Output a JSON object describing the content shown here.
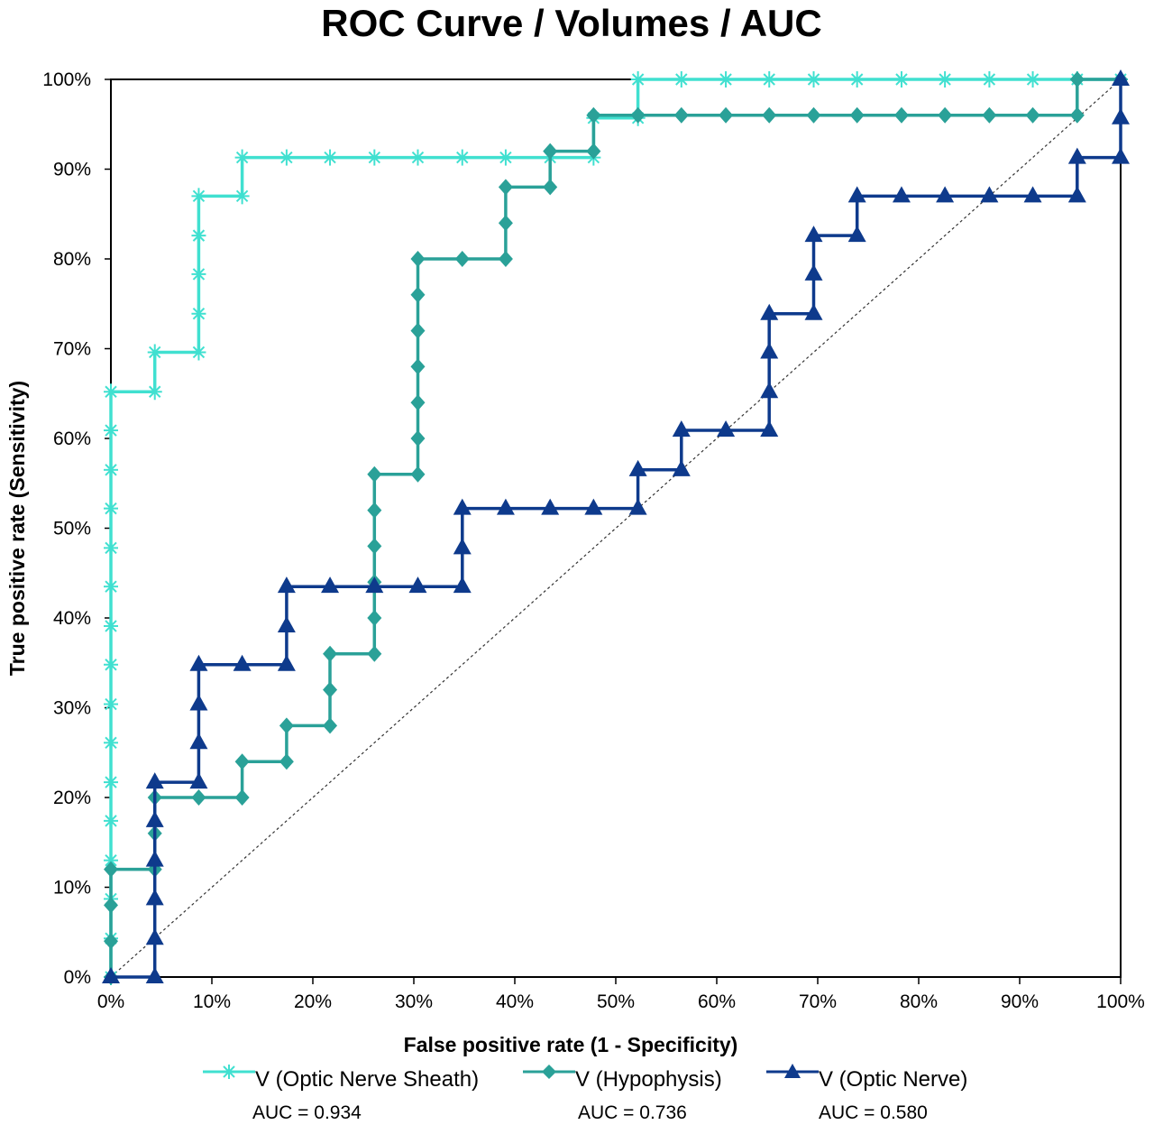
{
  "chart_data": {
    "type": "line",
    "title": "ROC Curve / Volumes / AUC",
    "xlabel": "False positive rate (1 - Specificity)",
    "ylabel": "True positive rate (Sensitivity)",
    "xlim": [
      0,
      1
    ],
    "ylim": [
      0,
      1
    ],
    "x_ticks": [
      "0%",
      "10%",
      "20%",
      "30%",
      "40%",
      "50%",
      "60%",
      "70%",
      "80%",
      "90%",
      "100%"
    ],
    "y_ticks": [
      "0%",
      "10%",
      "20%",
      "30%",
      "40%",
      "50%",
      "60%",
      "70%",
      "80%",
      "90%",
      "100%"
    ],
    "grid": false,
    "legend_position": "bottom",
    "reference_line": "diagonal dotted",
    "series": [
      {
        "name": "V (Optic Nerve Sheath)",
        "auc_label": "AUC = 0.934",
        "color": "#40E0D0",
        "marker": "asterisk",
        "points": [
          [
            0,
            0
          ],
          [
            0,
            0.043
          ],
          [
            0,
            0.087
          ],
          [
            0,
            0.13
          ],
          [
            0,
            0.174
          ],
          [
            0,
            0.217
          ],
          [
            0,
            0.261
          ],
          [
            0,
            0.304
          ],
          [
            0,
            0.348
          ],
          [
            0,
            0.391
          ],
          [
            0,
            0.435
          ],
          [
            0,
            0.478
          ],
          [
            0,
            0.522
          ],
          [
            0,
            0.565
          ],
          [
            0,
            0.609
          ],
          [
            0,
            0.652
          ],
          [
            0.0435,
            0.652
          ],
          [
            0.0435,
            0.696
          ],
          [
            0.087,
            0.696
          ],
          [
            0.087,
            0.739
          ],
          [
            0.087,
            0.783
          ],
          [
            0.087,
            0.826
          ],
          [
            0.087,
            0.87
          ],
          [
            0.13,
            0.87
          ],
          [
            0.13,
            0.913
          ],
          [
            0.174,
            0.913
          ],
          [
            0.217,
            0.913
          ],
          [
            0.261,
            0.913
          ],
          [
            0.304,
            0.913
          ],
          [
            0.348,
            0.913
          ],
          [
            0.391,
            0.913
          ],
          [
            0.435,
            0.913
          ],
          [
            0.478,
            0.913
          ],
          [
            0.478,
            0.957
          ],
          [
            0.522,
            0.957
          ],
          [
            0.522,
            1.0
          ],
          [
            0.565,
            1.0
          ],
          [
            0.609,
            1.0
          ],
          [
            0.652,
            1.0
          ],
          [
            0.696,
            1.0
          ],
          [
            0.739,
            1.0
          ],
          [
            0.783,
            1.0
          ],
          [
            0.826,
            1.0
          ],
          [
            0.87,
            1.0
          ],
          [
            0.913,
            1.0
          ],
          [
            0.957,
            1.0
          ],
          [
            1.0,
            1.0
          ]
        ]
      },
      {
        "name": "V (Hypophysis)",
        "auc_label": "AUC = 0.736",
        "color": "#2AA198",
        "marker": "diamond",
        "points": [
          [
            0,
            0
          ],
          [
            0,
            0.04
          ],
          [
            0,
            0.08
          ],
          [
            0,
            0.12
          ],
          [
            0.0435,
            0.12
          ],
          [
            0.0435,
            0.16
          ],
          [
            0.0435,
            0.2
          ],
          [
            0.087,
            0.2
          ],
          [
            0.13,
            0.2
          ],
          [
            0.13,
            0.24
          ],
          [
            0.174,
            0.24
          ],
          [
            0.174,
            0.28
          ],
          [
            0.217,
            0.28
          ],
          [
            0.217,
            0.32
          ],
          [
            0.217,
            0.36
          ],
          [
            0.261,
            0.36
          ],
          [
            0.261,
            0.4
          ],
          [
            0.261,
            0.44
          ],
          [
            0.261,
            0.48
          ],
          [
            0.261,
            0.52
          ],
          [
            0.261,
            0.56
          ],
          [
            0.304,
            0.56
          ],
          [
            0.304,
            0.6
          ],
          [
            0.304,
            0.64
          ],
          [
            0.304,
            0.68
          ],
          [
            0.304,
            0.72
          ],
          [
            0.304,
            0.76
          ],
          [
            0.304,
            0.8
          ],
          [
            0.348,
            0.8
          ],
          [
            0.391,
            0.8
          ],
          [
            0.391,
            0.84
          ],
          [
            0.391,
            0.88
          ],
          [
            0.435,
            0.88
          ],
          [
            0.435,
            0.92
          ],
          [
            0.478,
            0.92
          ],
          [
            0.478,
            0.96
          ],
          [
            0.522,
            0.96
          ],
          [
            0.565,
            0.96
          ],
          [
            0.609,
            0.96
          ],
          [
            0.652,
            0.96
          ],
          [
            0.696,
            0.96
          ],
          [
            0.739,
            0.96
          ],
          [
            0.783,
            0.96
          ],
          [
            0.826,
            0.96
          ],
          [
            0.87,
            0.96
          ],
          [
            0.913,
            0.96
          ],
          [
            0.957,
            0.96
          ],
          [
            0.957,
            1.0
          ],
          [
            1.0,
            1.0
          ]
        ]
      },
      {
        "name": "V (Optic Nerve)",
        "auc_label": "AUC = 0.580",
        "color": "#0E3A8C",
        "marker": "triangle",
        "points": [
          [
            0,
            0
          ],
          [
            0.0435,
            0
          ],
          [
            0.0435,
            0.043
          ],
          [
            0.0435,
            0.087
          ],
          [
            0.0435,
            0.13
          ],
          [
            0.0435,
            0.174
          ],
          [
            0.0435,
            0.217
          ],
          [
            0.087,
            0.217
          ],
          [
            0.087,
            0.261
          ],
          [
            0.087,
            0.304
          ],
          [
            0.087,
            0.348
          ],
          [
            0.13,
            0.348
          ],
          [
            0.174,
            0.348
          ],
          [
            0.174,
            0.391
          ],
          [
            0.174,
            0.435
          ],
          [
            0.217,
            0.435
          ],
          [
            0.261,
            0.435
          ],
          [
            0.304,
            0.435
          ],
          [
            0.348,
            0.435
          ],
          [
            0.348,
            0.478
          ],
          [
            0.348,
            0.522
          ],
          [
            0.391,
            0.522
          ],
          [
            0.435,
            0.522
          ],
          [
            0.478,
            0.522
          ],
          [
            0.522,
            0.522
          ],
          [
            0.522,
            0.565
          ],
          [
            0.565,
            0.565
          ],
          [
            0.565,
            0.609
          ],
          [
            0.609,
            0.609
          ],
          [
            0.652,
            0.609
          ],
          [
            0.652,
            0.652
          ],
          [
            0.652,
            0.696
          ],
          [
            0.652,
            0.739
          ],
          [
            0.696,
            0.739
          ],
          [
            0.696,
            0.783
          ],
          [
            0.696,
            0.826
          ],
          [
            0.739,
            0.826
          ],
          [
            0.739,
            0.87
          ],
          [
            0.783,
            0.87
          ],
          [
            0.826,
            0.87
          ],
          [
            0.87,
            0.87
          ],
          [
            0.913,
            0.87
          ],
          [
            0.957,
            0.87
          ],
          [
            0.957,
            0.913
          ],
          [
            1.0,
            0.913
          ],
          [
            1.0,
            0.957
          ],
          [
            1.0,
            1.0
          ]
        ]
      }
    ]
  }
}
